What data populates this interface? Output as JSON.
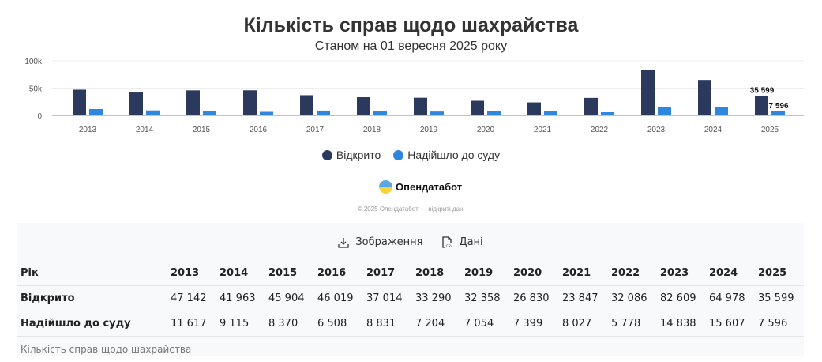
{
  "chart_data": {
    "type": "bar",
    "title": "Кількість справ щодо шахрайства",
    "subtitle": "Станом на 01 вересня 2025 року",
    "categories": [
      "2013",
      "2014",
      "2015",
      "2016",
      "2017",
      "2018",
      "2019",
      "2020",
      "2021",
      "2022",
      "2023",
      "2024",
      "2025"
    ],
    "series": [
      {
        "name": "Відкрито",
        "color": "#2b3a5c",
        "values": [
          47142,
          41963,
          45904,
          46019,
          37014,
          33290,
          32358,
          26830,
          23847,
          32086,
          82609,
          64978,
          35599
        ]
      },
      {
        "name": "Надійшло до суду",
        "color": "#2e86de",
        "values": [
          11617,
          9115,
          8370,
          6508,
          8831,
          7204,
          7054,
          7399,
          8027,
          5778,
          14838,
          15607,
          7596
        ]
      }
    ],
    "yticks": [
      "0",
      "50k",
      "100k"
    ],
    "ylim": [
      0,
      100000
    ],
    "grid": true,
    "legend": "bottom",
    "data_labels": [
      {
        "series": 0,
        "category": "2025",
        "text": "35 599"
      },
      {
        "series": 1,
        "category": "2025",
        "text": "7 596"
      }
    ]
  },
  "brand": {
    "name": "Опендатабот",
    "copyright": "© 2025 Опендатабот — відкриті дані"
  },
  "tools": {
    "image": "Зображення",
    "data": "Дані"
  },
  "table": {
    "header": "Рік",
    "years": [
      "2013",
      "2014",
      "2015",
      "2016",
      "2017",
      "2018",
      "2019",
      "2020",
      "2021",
      "2022",
      "2023",
      "2024",
      "2025"
    ],
    "rows": [
      {
        "label": "Відкрито",
        "values": [
          "47 142",
          "41 963",
          "45 904",
          "46 019",
          "37 014",
          "33 290",
          "32 358",
          "26 830",
          "23 847",
          "32 086",
          "82 609",
          "64 978",
          "35 599"
        ]
      },
      {
        "label": "Надійшло до суду",
        "values": [
          "11 617",
          "9 115",
          "8 370",
          "6 508",
          "8 831",
          "7 204",
          "7 054",
          "7 399",
          "8 027",
          "5 778",
          "14 838",
          "15 607",
          "7 596"
        ]
      }
    ],
    "caption": "Кількість справ щодо шахрайства"
  }
}
